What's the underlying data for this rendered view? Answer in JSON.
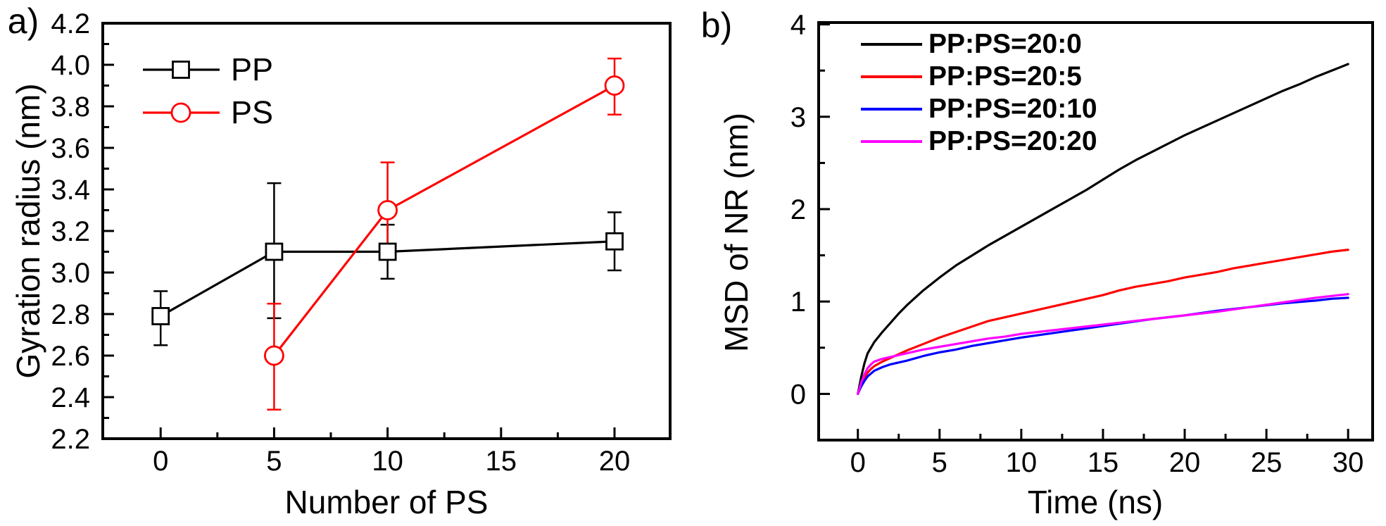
{
  "page": {
    "background": "#ffffff",
    "text_color": "#000000"
  },
  "panel_a": {
    "corner_label": "a)",
    "xlabel": "Number of PS",
    "ylabel": "Gyration radius (nm)"
  },
  "panel_b": {
    "corner_label": "b)",
    "xlabel": "Time (ns)",
    "ylabel": "MSD of NR (nm)"
  },
  "chart_data": [
    {
      "id": "panel-a",
      "type": "line",
      "title": "",
      "xlabel": "Number of PS",
      "ylabel": "Gyration radius (nm)",
      "xlim": [
        -2.55,
        22.45
      ],
      "ylim": [
        2.2,
        4.2
      ],
      "grid": false,
      "legend_position": "top-left-inside",
      "x_ticks": {
        "values": [
          0,
          5,
          10,
          15,
          20
        ],
        "labels": [
          "0",
          "5",
          "10",
          "15",
          "20"
        ]
      },
      "x_minor_ticks": [
        2.5,
        7.5,
        12.5,
        17.5
      ],
      "y_ticks": {
        "values": [
          2.2,
          2.4,
          2.6,
          2.8,
          3.0,
          3.2,
          3.4,
          3.6,
          3.8,
          4.0,
          4.2
        ],
        "labels": [
          "2.2",
          "2.4",
          "2.6",
          "2.8",
          "3.0",
          "3.2",
          "3.4",
          "3.6",
          "3.8",
          "4.0",
          "4.2"
        ]
      },
      "y_minor_ticks": [
        2.3,
        2.5,
        2.7,
        2.9,
        3.1,
        3.3,
        3.5,
        3.7,
        3.9,
        4.1
      ],
      "series": [
        {
          "name": "PP",
          "color": "#000000",
          "marker": "square",
          "x": [
            0,
            5,
            10,
            20
          ],
          "y": [
            2.79,
            3.1,
            3.1,
            3.15
          ],
          "err_plus": [
            0.12,
            0.33,
            0.13,
            0.14
          ],
          "err_minus": [
            0.14,
            0.32,
            0.13,
            0.14
          ]
        },
        {
          "name": "PS",
          "color": "#ff0000",
          "marker": "circle",
          "x": [
            5,
            10,
            20
          ],
          "y": [
            2.6,
            3.3,
            3.9
          ],
          "err_plus": [
            0.25,
            0.23,
            0.13
          ],
          "err_minus": [
            0.26,
            0.23,
            0.14
          ]
        }
      ]
    },
    {
      "id": "panel-b",
      "type": "line",
      "title": "",
      "xlabel": "Time (ns)",
      "ylabel": "MSD of NR (nm)",
      "xlim": [
        -2.4,
        31.5
      ],
      "ylim": [
        -0.5,
        4.02
      ],
      "grid": false,
      "legend_position": "top-left-inside",
      "x_ticks": {
        "values": [
          0,
          5,
          10,
          15,
          20,
          25,
          30
        ],
        "labels": [
          "0",
          "5",
          "10",
          "15",
          "20",
          "25",
          "30"
        ]
      },
      "x_minor_ticks": [
        2.5,
        7.5,
        12.5,
        17.5,
        22.5,
        27.5
      ],
      "y_ticks": {
        "values": [
          0,
          1,
          2,
          3,
          4
        ],
        "labels": [
          "0",
          "1",
          "2",
          "3",
          "4"
        ]
      },
      "y_minor_ticks": [
        0.5,
        1.5,
        2.5,
        3.5
      ],
      "series": [
        {
          "name": "PP:PS=20:0",
          "color": "#000000",
          "marker": "none",
          "x": [
            0,
            0.2,
            0.4,
            0.6,
            0.8,
            1,
            1.5,
            2,
            2.5,
            3,
            4,
            5,
            6,
            7,
            8,
            9,
            10,
            11,
            12,
            13,
            14,
            15,
            16,
            17,
            18,
            19,
            20,
            21,
            22,
            23,
            24,
            25,
            26,
            27,
            28,
            29,
            30
          ],
          "y": [
            0,
            0.18,
            0.33,
            0.44,
            0.5,
            0.56,
            0.67,
            0.77,
            0.87,
            0.96,
            1.12,
            1.26,
            1.39,
            1.5,
            1.61,
            1.71,
            1.81,
            1.91,
            2.01,
            2.11,
            2.21,
            2.32,
            2.43,
            2.53,
            2.62,
            2.71,
            2.8,
            2.88,
            2.96,
            3.04,
            3.12,
            3.2,
            3.28,
            3.35,
            3.43,
            3.5,
            3.57
          ]
        },
        {
          "name": "PP:PS=20:5",
          "color": "#ff0000",
          "marker": "none",
          "x": [
            0,
            0.2,
            0.4,
            0.6,
            0.8,
            1,
            1.5,
            2,
            2.5,
            3,
            4,
            5,
            6,
            7,
            8,
            9,
            10,
            11,
            12,
            13,
            14,
            15,
            16,
            17,
            18,
            19,
            20,
            21,
            22,
            23,
            24,
            25,
            26,
            27,
            28,
            29,
            30
          ],
          "y": [
            0,
            0.1,
            0.17,
            0.23,
            0.27,
            0.3,
            0.35,
            0.39,
            0.43,
            0.47,
            0.54,
            0.61,
            0.67,
            0.73,
            0.79,
            0.83,
            0.87,
            0.91,
            0.95,
            0.99,
            1.03,
            1.07,
            1.12,
            1.16,
            1.19,
            1.22,
            1.26,
            1.29,
            1.32,
            1.36,
            1.39,
            1.42,
            1.45,
            1.48,
            1.51,
            1.54,
            1.56
          ]
        },
        {
          "name": "PP:PS=20:10",
          "color": "#0000ff",
          "marker": "none",
          "x": [
            0,
            0.2,
            0.4,
            0.6,
            0.8,
            1,
            1.5,
            2,
            2.5,
            3,
            4,
            5,
            6,
            7,
            8,
            9,
            10,
            12,
            14,
            16,
            18,
            20,
            22,
            24,
            26,
            28,
            29,
            30
          ],
          "y": [
            0,
            0.08,
            0.14,
            0.19,
            0.22,
            0.25,
            0.29,
            0.32,
            0.34,
            0.36,
            0.41,
            0.45,
            0.48,
            0.52,
            0.55,
            0.58,
            0.61,
            0.66,
            0.71,
            0.76,
            0.81,
            0.85,
            0.9,
            0.94,
            0.98,
            1.01,
            1.03,
            1.04
          ]
        },
        {
          "name": "PP:PS=20:20",
          "color": "#ff00ff",
          "marker": "none",
          "x": [
            0,
            0.2,
            0.4,
            0.6,
            0.8,
            1,
            1.5,
            2,
            2.5,
            3,
            4,
            5,
            6,
            7,
            8,
            9,
            10,
            12,
            14,
            16,
            18,
            20,
            22,
            24,
            26,
            28,
            29,
            30
          ],
          "y": [
            0,
            0.12,
            0.21,
            0.28,
            0.32,
            0.35,
            0.38,
            0.4,
            0.42,
            0.44,
            0.48,
            0.51,
            0.54,
            0.57,
            0.6,
            0.62,
            0.65,
            0.69,
            0.73,
            0.77,
            0.81,
            0.85,
            0.89,
            0.94,
            0.99,
            1.04,
            1.06,
            1.08
          ]
        }
      ]
    }
  ]
}
